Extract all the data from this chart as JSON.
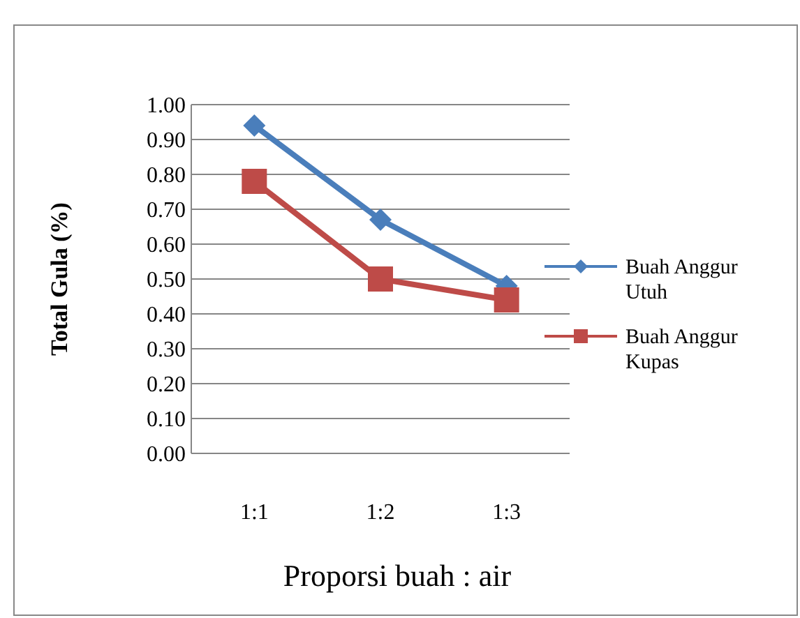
{
  "chart_data": {
    "type": "line",
    "xlabel": "Proporsi buah : air",
    "ylabel": "Total Gula (%)",
    "categories": [
      "1:1",
      "1:2",
      "1:3"
    ],
    "series": [
      {
        "name": "Buah Anggur Utuh",
        "color": "#4a7ebb",
        "values": [
          0.94,
          0.67,
          0.48
        ],
        "marker": "diamond"
      },
      {
        "name": "Buah Anggur Kupas",
        "color": "#be4b48",
        "values": [
          0.78,
          0.5,
          0.44
        ],
        "marker": "square"
      }
    ],
    "ylim": [
      0,
      1
    ],
    "yticks": [
      {
        "value": 0,
        "label": "0.00"
      },
      {
        "value": 0.1,
        "label": "0.10"
      },
      {
        "value": 0.2,
        "label": "0.20"
      },
      {
        "value": 0.3,
        "label": "0.30"
      },
      {
        "value": 0.4,
        "label": "0.40"
      },
      {
        "value": 0.5,
        "label": "0.50"
      },
      {
        "value": 0.6,
        "label": "0.60"
      },
      {
        "value": 0.7,
        "label": "0.70"
      },
      {
        "value": 0.8,
        "label": "0.80"
      },
      {
        "value": 0.9,
        "label": "0.90"
      },
      {
        "value": 1,
        "label": "1.00"
      }
    ],
    "grid": "y",
    "legend": "right"
  }
}
